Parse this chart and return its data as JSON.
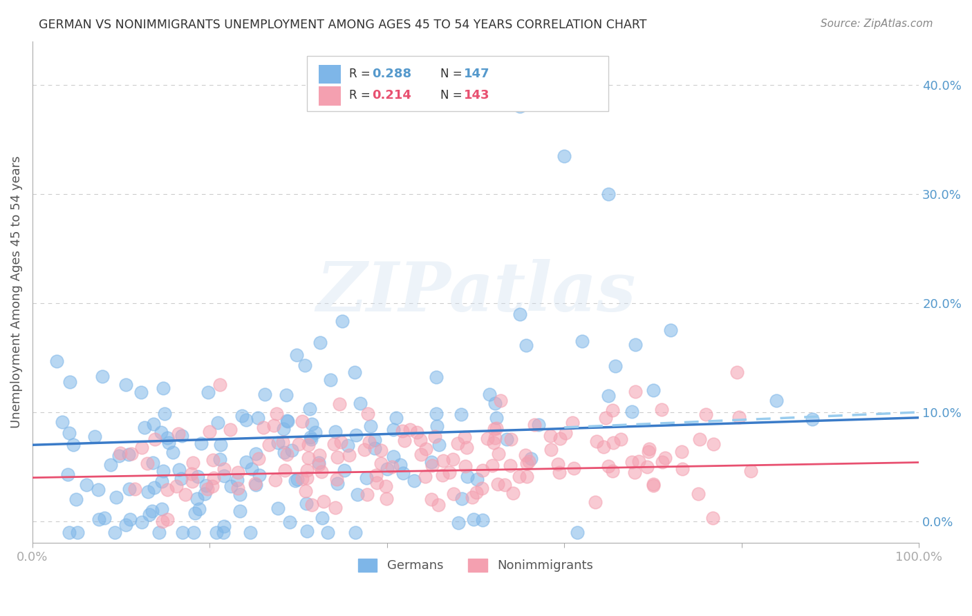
{
  "title": "GERMAN VS NONIMMIGRANTS UNEMPLOYMENT AMONG AGES 45 TO 54 YEARS CORRELATION CHART",
  "source": "Source: ZipAtlas.com",
  "ylabel": "Unemployment Among Ages 45 to 54 years",
  "xlabel_ticks": [
    "0.0%",
    "100.0%"
  ],
  "ytick_labels": [
    "0.0%",
    "10.0%",
    "20.0%",
    "30.0%",
    "40.0%"
  ],
  "ytick_values": [
    0.0,
    0.1,
    0.2,
    0.3,
    0.4
  ],
  "xlim": [
    0.0,
    1.0
  ],
  "ylim": [
    -0.02,
    0.44
  ],
  "blue_color": "#7EB6E8",
  "pink_color": "#F4A0B0",
  "blue_line_color": "#3A7BC8",
  "pink_line_color": "#E85070",
  "dashed_line_color": "#99CCEE",
  "legend_blue_label": "R = 0.288    N = 147",
  "legend_pink_label": "R = 0.214    N = 143",
  "legend_german": "Germans",
  "legend_nonimmigrant": "Nonimmigrants",
  "watermark": "ZIPatlas",
  "title_color": "#333333",
  "axis_color": "#5599CC",
  "grid_color": "#CCCCCC",
  "R_blue": 0.288,
  "N_blue": 147,
  "R_pink": 0.214,
  "N_pink": 143,
  "seed_blue": 42,
  "seed_pink": 99,
  "blue_intercept": 0.07,
  "blue_slope": 0.025,
  "pink_intercept": 0.04,
  "pink_slope": 0.014,
  "dashed_intercept": 0.065,
  "dashed_slope": 0.035
}
